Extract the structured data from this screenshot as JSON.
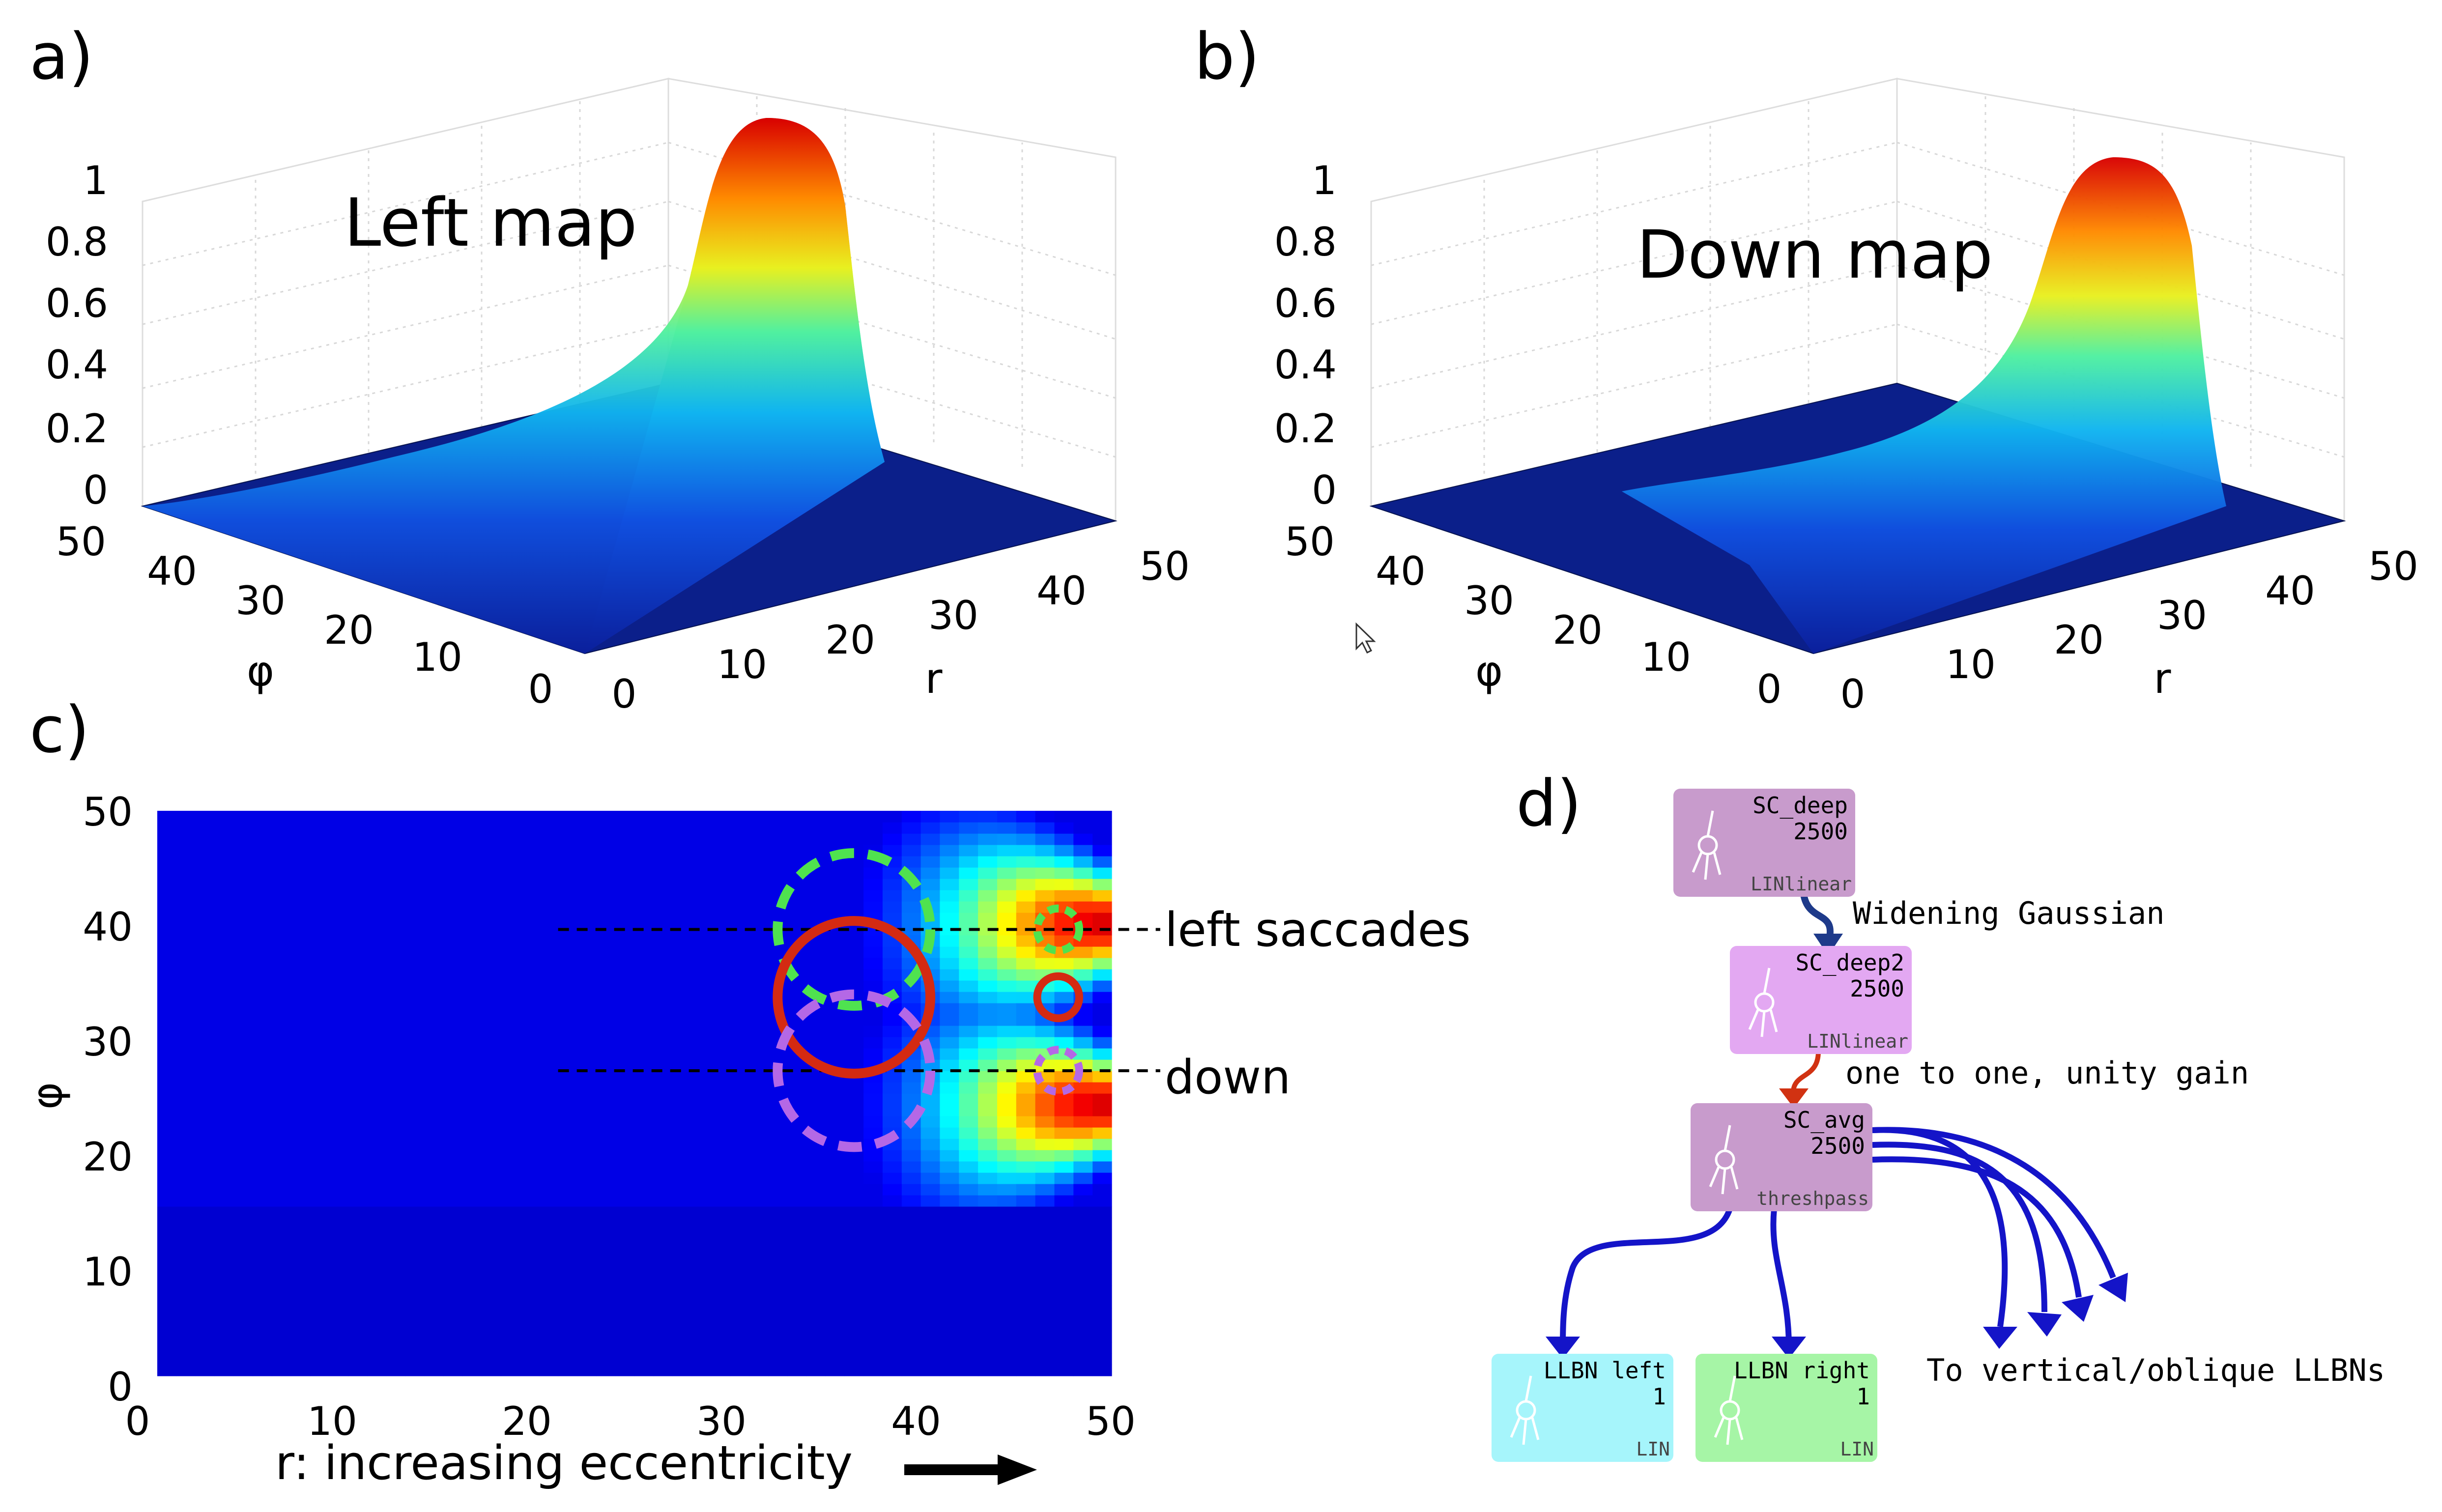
{
  "panels": {
    "a": {
      "label": "a)",
      "title": "Left map",
      "z_ticks": [
        "0",
        "0.2",
        "0.4",
        "0.6",
        "0.8",
        "1"
      ],
      "phi_label": "φ",
      "phi_ticks": [
        "0",
        "10",
        "20",
        "30",
        "40",
        "50"
      ],
      "r_label": "r",
      "r_ticks": [
        "0",
        "10",
        "20",
        "30",
        "40",
        "50"
      ]
    },
    "b": {
      "label": "b)",
      "title": "Down map",
      "z_ticks": [
        "0",
        "0.2",
        "0.4",
        "0.6",
        "0.8",
        "1"
      ],
      "phi_label": "φ",
      "phi_ticks": [
        "0",
        "10",
        "20",
        "30",
        "40",
        "50"
      ],
      "r_label": "r",
      "r_ticks": [
        "0",
        "10",
        "20",
        "30",
        "40",
        "50"
      ]
    },
    "c": {
      "label": "c)",
      "xlabel": "r: increasing eccentricity",
      "ylabel": "φ",
      "x_ticks": [
        "0",
        "10",
        "20",
        "30",
        "40",
        "50"
      ],
      "y_ticks": [
        "0",
        "10",
        "20",
        "30",
        "40",
        "50"
      ],
      "annotations": {
        "left": "left saccades",
        "down": "down"
      }
    },
    "d": {
      "label": "d)",
      "nodes": {
        "sc_deep": {
          "name": "SC_deep",
          "size": "2500",
          "type": "LINlinear",
          "color": "#c89bcc"
        },
        "sc_deep2": {
          "name": "SC_deep2",
          "size": "2500",
          "type": "LINlinear",
          "color": "#e3a8f2"
        },
        "sc_avg": {
          "name": "SC_avg",
          "size": "2500",
          "type": "threshpass",
          "color": "#c89bcc"
        },
        "llbn_left": {
          "name": "LLBN left",
          "size": "1",
          "type": "LIN",
          "color": "#a6f5fb"
        },
        "llbn_right": {
          "name": "LLBN right",
          "size": "1",
          "type": "LIN",
          "color": "#a6f5a6"
        }
      },
      "edges": {
        "deep_to_deep2": {
          "label": "Widening Gaussian",
          "color": "#1e3a8a"
        },
        "deep2_to_avg": {
          "label": "one to one, unity gain",
          "color": "#d13212"
        },
        "avg_out": {
          "label": "To vertical/oblique LLBNs",
          "color": "#1414c8"
        }
      }
    }
  },
  "chart_data": [
    {
      "panel": "a",
      "type": "heatmap",
      "title": "Left map",
      "xlabel": "r",
      "ylabel": "φ",
      "xlim": [
        0,
        50
      ],
      "ylim": [
        0,
        50
      ],
      "zlim": [
        0,
        1
      ],
      "peak": {
        "r": 50,
        "phi": 50,
        "value": 1
      },
      "colormap": "jet"
    },
    {
      "panel": "b",
      "type": "heatmap",
      "title": "Down map",
      "xlabel": "r",
      "ylabel": "φ",
      "xlim": [
        0,
        50
      ],
      "ylim": [
        0,
        50
      ],
      "zlim": [
        0,
        1
      ],
      "peak": {
        "r": 50,
        "phi": 36,
        "value": 1
      },
      "colormap": "jet"
    },
    {
      "panel": "c",
      "type": "heatmap",
      "xlabel": "r: increasing eccentricity",
      "ylabel": "φ",
      "xlim": [
        0,
        50
      ],
      "ylim": [
        0,
        50
      ],
      "grid": false,
      "active_region": {
        "r_from": 20,
        "r_to": 50,
        "phi_from": 15,
        "phi_to": 50
      },
      "peaks": [
        {
          "r": 50,
          "phi": 40,
          "value": 1
        },
        {
          "r": 50,
          "phi": 24,
          "value": 1
        }
      ],
      "guide_lines": [
        {
          "label": "left saccades",
          "phi": 39.5,
          "r_from": 21,
          "r_to": 51
        },
        {
          "label": "down",
          "phi": 27,
          "r_from": 21,
          "r_to": 51
        }
      ],
      "circles": [
        {
          "r": 36.5,
          "phi": 39.5,
          "radius": 4,
          "color": "#4fe24f",
          "dashed": true
        },
        {
          "r": 36.5,
          "phi": 33.5,
          "radius": 4,
          "color": "#d42a12",
          "dashed": false
        },
        {
          "r": 36.5,
          "phi": 27,
          "radius": 4,
          "color": "#b468e6",
          "dashed": true
        },
        {
          "r": 47.2,
          "phi": 39.5,
          "radius": 1.1,
          "color": "#4fe24f",
          "dashed": true
        },
        {
          "r": 47.2,
          "phi": 33.5,
          "radius": 1.1,
          "color": "#d42a12",
          "dashed": false
        },
        {
          "r": 47.2,
          "phi": 27,
          "radius": 1.1,
          "color": "#b468e6",
          "dashed": true
        }
      ],
      "colormap": "jet"
    }
  ]
}
